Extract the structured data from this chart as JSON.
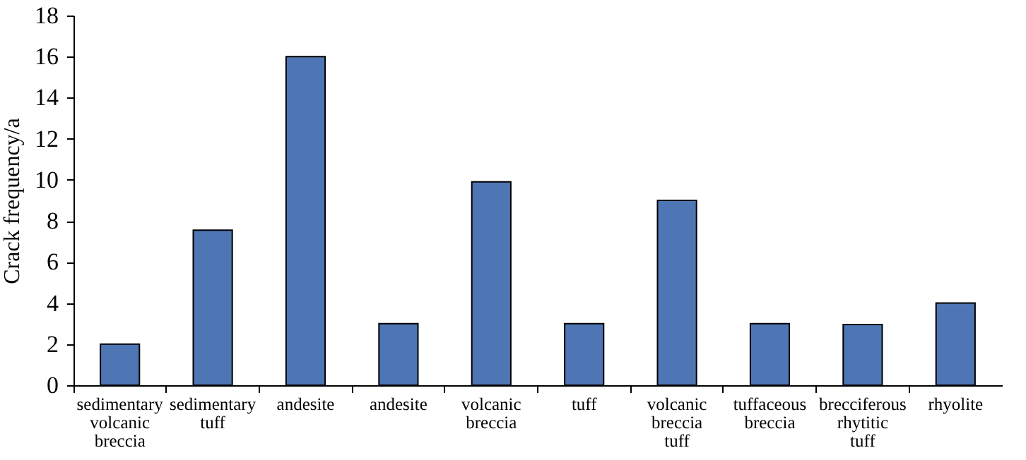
{
  "chart_data": {
    "type": "bar",
    "ylabel": "Crack frequency/a",
    "categories": [
      "sedimentary volcanic breccia",
      "sedimentary tuff",
      "andesite",
      "andesite",
      "volcanic breccia",
      "tuff",
      "volcanic breccia tuff",
      "tuffaceous breccia",
      "brecciferous rhytitic tuff",
      "rhyolite"
    ],
    "values": [
      2.0,
      7.55,
      16.0,
      3.0,
      9.9,
      3.0,
      9.0,
      3.0,
      2.95,
      4.0
    ],
    "color": "#4f76b4",
    "ylim": [
      0,
      18
    ],
    "yticks": [
      0,
      2,
      4,
      6,
      8,
      10,
      12,
      14,
      16,
      18
    ],
    "grid": false
  }
}
